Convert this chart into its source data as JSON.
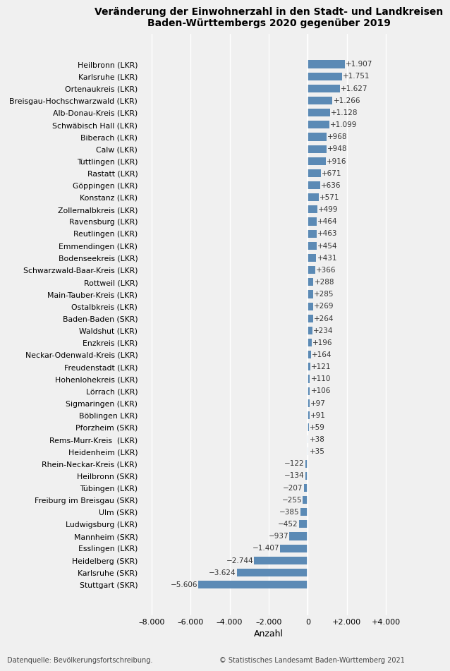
{
  "title": "Veränderung der Einwohnerzahl in den Stadt- und Landkreisen\nBaden-Württembergs 2020 gegenüber 2019",
  "xlabel": "Anzahl",
  "categories": [
    "Heilbronn (LKR)",
    "Karlsruhe (LKR)",
    "Ortenaukreis (LKR)",
    "Breisgau-Hochschwarzwald (LKR)",
    "Alb-Donau-Kreis (LKR)",
    "Schwäbisch Hall (LKR)",
    "Biberach (LKR)",
    "Calw (LKR)",
    "Tuttlingen (LKR)",
    "Rastatt (LKR)",
    "Göppingen (LKR)",
    "Konstanz (LKR)",
    "Zollernalbkreis (LKR)",
    "Ravensburg (LKR)",
    "Reutlingen (LKR)",
    "Emmendingen (LKR)",
    "Bodenseekreis (LKR)",
    "Schwarzwald-Baar-Kreis (LKR)",
    "Rottweil (LKR)",
    "Main-Tauber-Kreis (LKR)",
    "Ostalbkreis (LKR)",
    "Baden-Baden (SKR)",
    "Waldshut (LKR)",
    "Enzkreis (LKR)",
    "Neckar-Odenwald-Kreis (LKR)",
    "Freudenstadt (LKR)",
    "Hohenlohekreis (LKR)",
    "Lörrach (LKR)",
    "Sigmaringen (LKR)",
    "Böblingen LKR)",
    "Pforzheim (SKR)",
    "Rems-Murr-Kreis  (LKR)",
    "Heidenheim (LKR)",
    "Rhein-Neckar-Kreis (LKR)",
    "Heilbronn (SKR)",
    "Tübingen (LKR)",
    "Freiburg im Breisgau (SKR)",
    "Ulm (SKR)",
    "Ludwigsburg (LKR)",
    "Mannheim (SKR)",
    "Esslingen (LKR)",
    "Heidelberg (SKR)",
    "Karlsruhe (SKR)",
    "Stuttgart (SKR)"
  ],
  "values": [
    1907,
    1751,
    1627,
    1266,
    1128,
    1099,
    968,
    948,
    916,
    671,
    636,
    571,
    499,
    464,
    463,
    454,
    431,
    366,
    288,
    285,
    269,
    264,
    234,
    196,
    164,
    121,
    110,
    106,
    97,
    91,
    59,
    38,
    35,
    -122,
    -134,
    -207,
    -255,
    -385,
    -452,
    -937,
    -1407,
    -2744,
    -3624,
    -5606
  ],
  "bar_color": "#5b8ab5",
  "label_color": "#333333",
  "background_color": "#f0f0f0",
  "footer_left": "Datenquelle: Bevölkerungsfortschreibung.",
  "footer_right": "© Statistisches Landesamt Baden-Württemberg 2021",
  "xlim": [
    -8500,
    4500
  ],
  "xticks": [
    -8000,
    -6000,
    -4000,
    -2000,
    0,
    2000,
    4000
  ],
  "xtick_labels": [
    "–8.000",
    "–6.000",
    "–4.000",
    "–2.000",
    "0",
    "+2.000",
    "+4.000"
  ]
}
